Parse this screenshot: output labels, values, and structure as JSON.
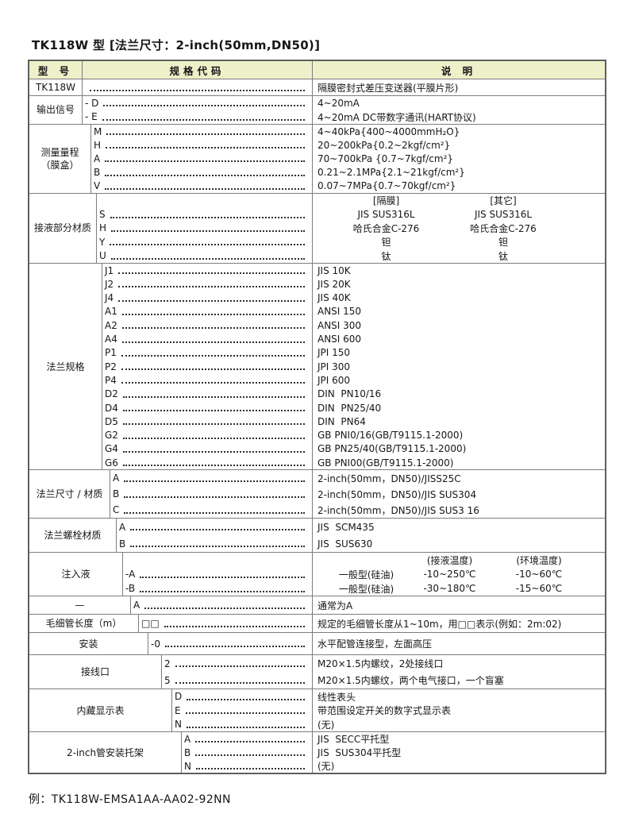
{
  "colors": {
    "header_bg": "#edf0c8",
    "border": "#7d7d7d"
  },
  "title": "TK118W 型 [法兰尺寸：2-inch(50mm,DN50)]",
  "footer_example": "例：TK118W-EMSA1AA-AA02-92NN",
  "table_header": {
    "model": "型 号",
    "code": "规格代码",
    "desc": "说 明"
  },
  "sections": [
    {
      "label": "TK118W",
      "rows": [
        {
          "code": "",
          "desc": "隔膜密封式差压变送器(平膜片形)"
        }
      ]
    },
    {
      "label": "输出信号",
      "rows": [
        {
          "code": "- D",
          "desc": "4~20mA"
        },
        {
          "code": "- E",
          "desc": "4~20mA DC带数字通讯(HART协议)"
        }
      ]
    },
    {
      "label": "测量量程",
      "label2": "（膜盒）",
      "rows": [
        {
          "code": "M",
          "desc": "4~40kPa{400~4000mmH₂O}"
        },
        {
          "code": "H",
          "desc": "20~200kPa{0.2~2kgf/cm²}"
        },
        {
          "code": "A",
          "desc": "70~700kPa {0.7~7kgf/cm²}"
        },
        {
          "code": "B",
          "desc": "0.21~2.1MPa{2.1~21kgf/cm²}"
        },
        {
          "code": "V",
          "desc": "0.07~7MPa{0.7~70kgf/cm²}"
        }
      ]
    },
    {
      "label": "接液部分材质",
      "h1": "[隔膜]",
      "h2": "[其它]",
      "rows": [
        {
          "code": "S",
          "d1": "JIS SUS316L",
          "d2": "JIS SUS316L"
        },
        {
          "code": "H",
          "d1": "哈氏合金C-276",
          "d2": "哈氏合金C-276"
        },
        {
          "code": "Y",
          "d1": "钽",
          "d2": "钽"
        },
        {
          "code": "U",
          "d1": "钛",
          "d2": "钛"
        }
      ]
    },
    {
      "label": "法兰规格",
      "rows": [
        {
          "code": "J1",
          "desc": "JIS 10K"
        },
        {
          "code": "J2",
          "desc": "JIS 20K"
        },
        {
          "code": "J4",
          "desc": "JIS 40K"
        },
        {
          "code": "A1",
          "desc": "ANSI 150"
        },
        {
          "code": "A2",
          "desc": "ANSI 300"
        },
        {
          "code": "A4",
          "desc": "ANSI 600"
        },
        {
          "code": "P1",
          "desc": "JPI 150"
        },
        {
          "code": "P2",
          "desc": "JPI 300"
        },
        {
          "code": "P4",
          "desc": "JPI 600"
        },
        {
          "code": "D2",
          "desc": "DIN  PN10/16"
        },
        {
          "code": "D4",
          "desc": "DIN  PN25/40"
        },
        {
          "code": "D5",
          "desc": "DIN  PN64"
        },
        {
          "code": "G2",
          "desc": "GB PNI0/16(GB/T9115.1-2000)"
        },
        {
          "code": "G4",
          "desc": "GB PN25/40(GB/T9115.1-2000)"
        },
        {
          "code": "G6",
          "desc": "GB PNI00(GB/T9115.1-2000)"
        }
      ]
    },
    {
      "label": "法兰尺寸 / 材质",
      "rows": [
        {
          "code": "A",
          "desc": "2-inch(50mm，DN50)/JISS25C"
        },
        {
          "code": "B",
          "desc": "2-inch(50mm，DN50)/JIS SUS304"
        },
        {
          "code": "C",
          "desc": "2-inch(50mm，DN50)/JIS SUS3 16"
        }
      ]
    },
    {
      "label": "法兰螺栓材质",
      "rows": [
        {
          "code": "A",
          "desc": "JIS  SCM435"
        },
        {
          "code": "B",
          "desc": "JIS  SUS630"
        }
      ]
    },
    {
      "label": "注入液",
      "h1": "(接液温度)",
      "h2": "(环境温度)",
      "rows": [
        {
          "code": "-A",
          "type": "一般型(硅油)",
          "t1": "-10~250℃",
          "t2": "-10~60℃"
        },
        {
          "code": "-B",
          "type": "一般型(硅油)",
          "t1": "-30~180℃",
          "t2": "-15~60℃"
        }
      ]
    },
    {
      "label": "—",
      "rows": [
        {
          "code": "A",
          "desc": "通常为A"
        }
      ]
    },
    {
      "label": "毛细管长度（m）",
      "rows": [
        {
          "code": "□□",
          "desc": "规定的毛细管长度从1~10m，用□□表示(例如：2m:02)"
        }
      ]
    },
    {
      "label": "安装",
      "rows": [
        {
          "code": "-0",
          "desc": "水平配管连接型，左面高压"
        }
      ]
    },
    {
      "label": "接线口",
      "rows": [
        {
          "code": "2",
          "desc": "M20×1.5内螺纹，2处接线口"
        },
        {
          "code": "5",
          "desc": "M20×1.5内螺纹，两个电气接口，一个盲塞"
        }
      ]
    },
    {
      "label": "内藏显示表",
      "rows": [
        {
          "code": "D",
          "desc": "线性表头"
        },
        {
          "code": "E",
          "desc": "带范围设定开关的数字式显示表"
        },
        {
          "code": "N",
          "desc": "(无)"
        }
      ]
    },
    {
      "label": "2-inch管安装托架",
      "rows": [
        {
          "code": "A",
          "desc": "JIS  SECC平托型"
        },
        {
          "code": "B",
          "desc": "JIS  SUS304平托型"
        },
        {
          "code": "N",
          "desc": "(无)"
        }
      ]
    }
  ]
}
